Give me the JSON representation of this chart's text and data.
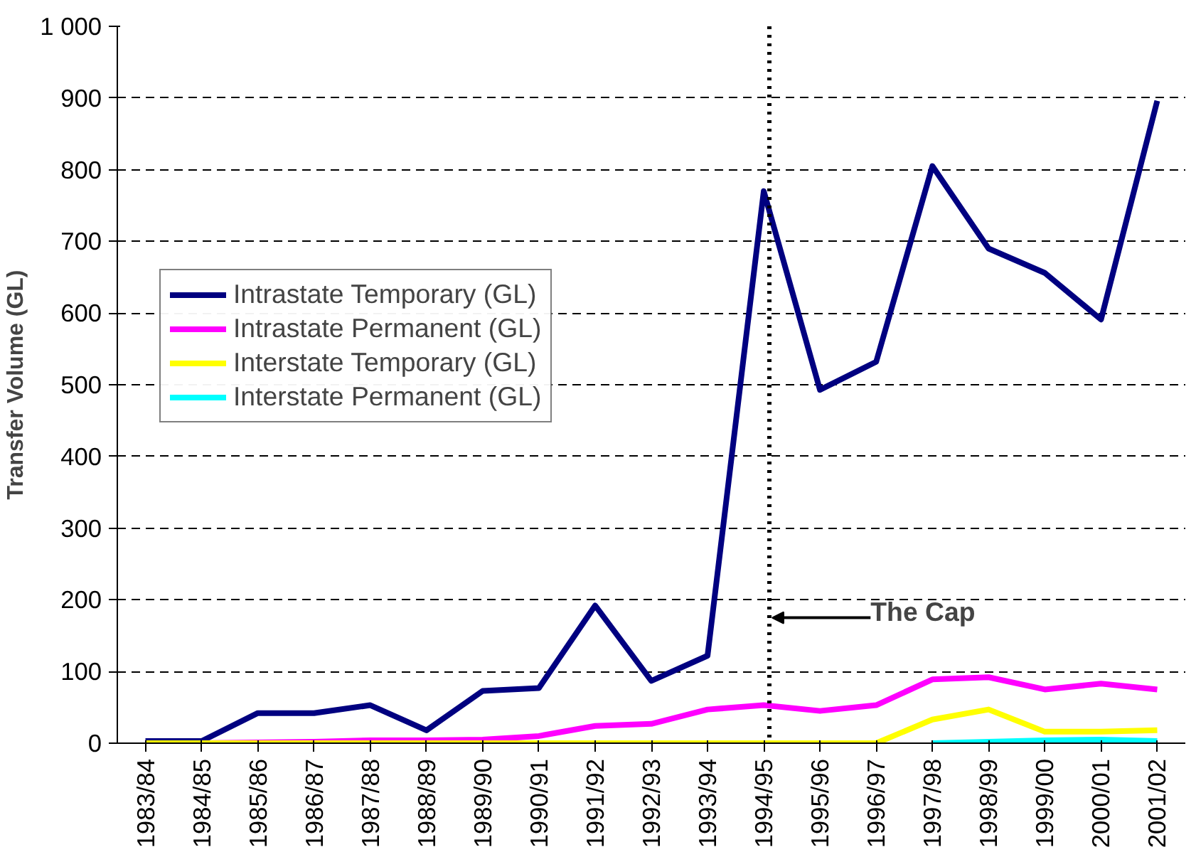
{
  "chart_data": {
    "type": "line",
    "ylabel": "Transfer Volume (GL)",
    "categories": [
      "1983/84",
      "1984/85",
      "1985/86",
      "1986/87",
      "1987/88",
      "1988/89",
      "1989/90",
      "1990/91",
      "1991/92",
      "1992/93",
      "1993/94",
      "1994/95",
      "1995/96",
      "1996/97",
      "1997/98",
      "1998/99",
      "1999/00",
      "2000/01",
      "2001/02"
    ],
    "series": [
      {
        "name": "Intrastate Temporary (GL)",
        "color": "#000080",
        "values": [
          3,
          3,
          42,
          42,
          53,
          18,
          73,
          77,
          192,
          87,
          122,
          770,
          493,
          532,
          805,
          690,
          656,
          591,
          896
        ]
      },
      {
        "name": "Intrastate Permanent (GL)",
        "color": "#ff00ff",
        "values": [
          0,
          0,
          1,
          2,
          4,
          4,
          5,
          10,
          24,
          27,
          47,
          53,
          45,
          53,
          89,
          92,
          75,
          83,
          75
        ]
      },
      {
        "name": "Interstate Temporary (GL)",
        "color": "#ffff00",
        "values": [
          0,
          0,
          0,
          0,
          0,
          0,
          0,
          0,
          0,
          0,
          0,
          0,
          0,
          0,
          33,
          47,
          16,
          16,
          18
        ]
      },
      {
        "name": "Interstate Permanent (GL)",
        "color": "#00ffff",
        "values": [
          null,
          null,
          null,
          null,
          null,
          null,
          null,
          null,
          null,
          null,
          null,
          null,
          null,
          null,
          0,
          2,
          4,
          5,
          3
        ]
      }
    ],
    "ylim": [
      0,
      1000
    ],
    "yticks": [
      0,
      100,
      200,
      300,
      400,
      500,
      600,
      700,
      800,
      900,
      {
        "value": 1000,
        "label": "1 000"
      }
    ],
    "grid": "y",
    "legend": "top left",
    "line_style": "solid",
    "marker": "none",
    "ref_lines": [
      {
        "axis": "x",
        "value": "1994/95",
        "label": "The Cap",
        "color": "#000000",
        "line_style": "dotted"
      }
    ]
  }
}
